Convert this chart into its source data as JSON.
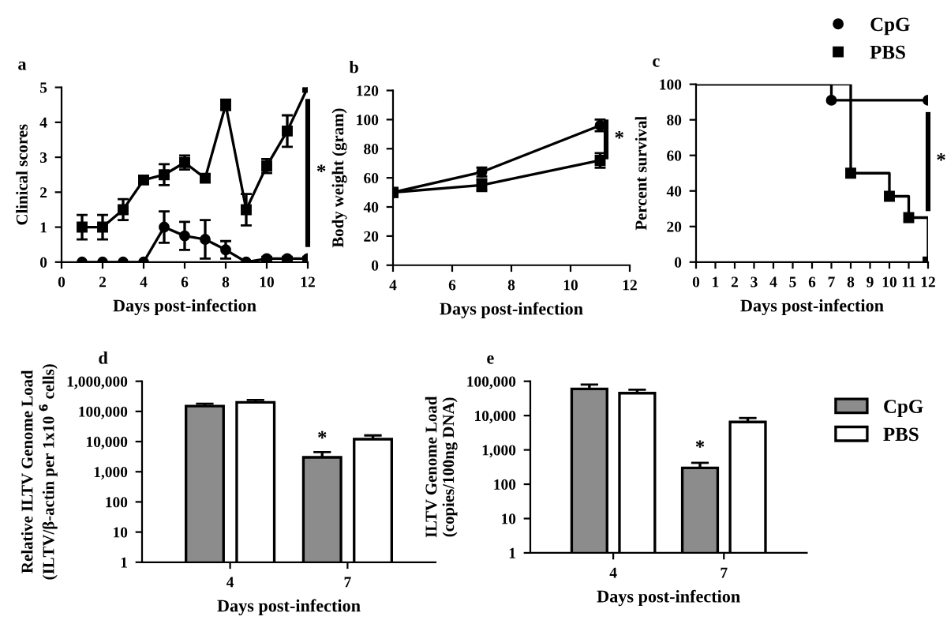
{
  "chart_data": [
    {
      "type": "line",
      "title": "a",
      "xlabel": "Days post-infection",
      "ylabel": "Clinical scores",
      "x": [
        1,
        2,
        3,
        4,
        5,
        6,
        7,
        8,
        9,
        10,
        11,
        12
      ],
      "xlim": [
        0,
        12
      ],
      "xticks": [
        0,
        2,
        4,
        6,
        8,
        10,
        12
      ],
      "ylim": [
        0,
        5
      ],
      "yticks": [
        0,
        1,
        2,
        3,
        4,
        5
      ],
      "grid": false,
      "legend": false,
      "annotations": [
        "*"
      ],
      "series": [
        {
          "color": "#000000",
          "marker": "square",
          "values": [
            1,
            1,
            1.5,
            2.35,
            2.5,
            2.85,
            2.4,
            4.5,
            1.5,
            2.75,
            3.75,
            5
          ],
          "errors": [
            0.35,
            0.35,
            0.3,
            0.1,
            0.3,
            0.2,
            0.1,
            0.15,
            0.45,
            0.2,
            0.45,
            null
          ]
        },
        {
          "color": "#000000",
          "marker": "circle",
          "values": [
            0,
            0,
            0,
            0,
            1,
            0.75,
            0.65,
            0.35,
            0,
            0.1,
            0.1,
            0.1
          ],
          "errors": [
            null,
            null,
            null,
            null,
            0.45,
            0.4,
            0.55,
            0.25,
            null,
            0.05,
            0.05,
            0.05
          ]
        }
      ]
    },
    {
      "type": "line",
      "title": "b",
      "xlabel": "Days post-infection",
      "ylabel": "Body weight (gram)",
      "x": [
        4,
        7,
        11
      ],
      "xlim": [
        4,
        12
      ],
      "xticks": [
        4,
        6,
        8,
        10,
        12
      ],
      "ylim": [
        0,
        120
      ],
      "yticks": [
        0,
        20,
        40,
        60,
        80,
        100,
        120
      ],
      "grid": false,
      "legend": false,
      "annotations": [
        "*"
      ],
      "series": [
        {
          "color": "#000000",
          "marker": "circle",
          "values": [
            50,
            64,
            96
          ],
          "errors": [
            3,
            3,
            4
          ]
        },
        {
          "color": "#000000",
          "marker": "square",
          "values": [
            50,
            55,
            72
          ],
          "errors": [
            3,
            4,
            5
          ]
        }
      ]
    },
    {
      "type": "step",
      "title": "c",
      "xlabel": "Days post-infection",
      "ylabel": "Percent survival",
      "xlim": [
        0,
        12
      ],
      "xticks": [
        0,
        1,
        2,
        3,
        4,
        5,
        6,
        7,
        8,
        9,
        10,
        11,
        12
      ],
      "ylim": [
        0,
        100
      ],
      "yticks": [
        0,
        20,
        40,
        60,
        80,
        100
      ],
      "grid": false,
      "legend": "top right",
      "annotations": [
        "*"
      ],
      "series": [
        {
          "name": "CpG",
          "color": "#000000",
          "marker": "circle",
          "x": [
            0,
            7,
            12
          ],
          "values": [
            100,
            91,
            91
          ]
        },
        {
          "name": "PBS",
          "color": "#000000",
          "marker": "square",
          "x": [
            0,
            8,
            10,
            11,
            12
          ],
          "values": [
            100,
            50,
            37,
            25,
            0
          ]
        }
      ]
    },
    {
      "type": "bar",
      "title": "d",
      "xlabel": "Days post-infection",
      "ylabel": "Relative ILTV Genome Load\n(ILTV/β-actin per 1x10 $^{6}$ cells)",
      "categories": [
        "4",
        "7"
      ],
      "log": true,
      "ylim": [
        1,
        1000000
      ],
      "yticks": [
        1,
        10,
        100,
        {
          "value": 1000,
          "label": "1,000"
        },
        {
          "value": 10000,
          "label": "10,000"
        },
        {
          "value": 100000,
          "label": "100,000"
        },
        {
          "value": 1000000,
          "label": "1,000,000"
        }
      ],
      "grid": false,
      "legend": false,
      "annotations": [
        {
          "text": "*",
          "x": "7",
          "y": 6000
        }
      ],
      "series": [
        {
          "color": "#8c8c8c",
          "values": [
            150000,
            3000
          ],
          "errors": [
            30000,
            1500
          ]
        },
        {
          "color": "#ffffff",
          "values": [
            200000,
            12000
          ],
          "errors": [
            40000,
            4000
          ]
        }
      ]
    },
    {
      "type": "bar",
      "title": "e",
      "xlabel": "Days post-infection",
      "ylabel": "ILTV Genome Load\n(copies/100ng DNA)",
      "categories": [
        "4",
        "7"
      ],
      "log": true,
      "ylim": [
        1,
        100000
      ],
      "yticks": [
        1,
        10,
        100,
        {
          "value": 1000,
          "label": "1,000"
        },
        {
          "value": 10000,
          "label": "10,000"
        },
        {
          "value": 100000,
          "label": "100,000"
        }
      ],
      "grid": false,
      "legend": "right",
      "annotations": [
        {
          "text": "*",
          "x": "7",
          "y": 600
        }
      ],
      "series": [
        {
          "name": "CpG",
          "color": "#8c8c8c",
          "values": [
            60000,
            300
          ],
          "errors": [
            20000,
            120
          ]
        },
        {
          "name": "PBS",
          "color": "#ffffff",
          "values": [
            45000,
            6500
          ],
          "errors": [
            12000,
            2000
          ]
        }
      ]
    }
  ]
}
